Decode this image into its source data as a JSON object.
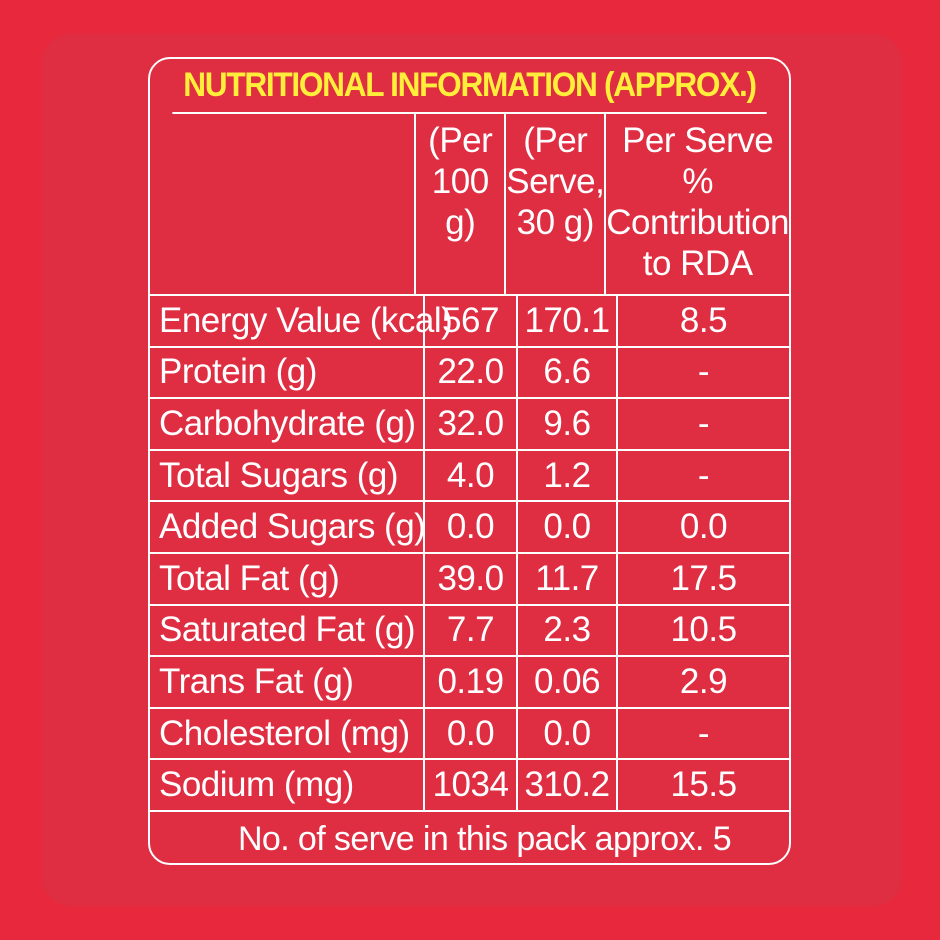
{
  "title": "NUTRITIONAL INFORMATION (APPROX.)",
  "colors": {
    "background": "#e8283c",
    "title": "#ffee3a",
    "text": "#ffffff",
    "border": "#ffffff"
  },
  "columns": {
    "per100": "(Per 100 g)",
    "perServe": "(Per Serve, 30 g)",
    "rda": "Per Serve % Contribution to RDA"
  },
  "rows": [
    {
      "nutrient": "Energy Value (kcal)",
      "per100": "567",
      "perServe": "170.1",
      "rda": "8.5"
    },
    {
      "nutrient": "Protein (g)",
      "per100": "22.0",
      "perServe": "6.6",
      "rda": "-"
    },
    {
      "nutrient": "Carbohydrate (g)",
      "per100": "32.0",
      "perServe": "9.6",
      "rda": "-"
    },
    {
      "nutrient": "Total Sugars (g)",
      "per100": "4.0",
      "perServe": "1.2",
      "rda": "-"
    },
    {
      "nutrient": "Added Sugars (g)",
      "per100": "0.0",
      "perServe": "0.0",
      "rda": "0.0"
    },
    {
      "nutrient": "Total Fat (g)",
      "per100": "39.0",
      "perServe": "11.7",
      "rda": "17.5"
    },
    {
      "nutrient": "Saturated Fat (g)",
      "per100": "7.7",
      "perServe": "2.3",
      "rda": "10.5"
    },
    {
      "nutrient": "Trans Fat (g)",
      "per100": "0.19",
      "perServe": "0.06",
      "rda": "2.9"
    },
    {
      "nutrient": "Cholesterol (mg)",
      "per100": "0.0",
      "perServe": "0.0",
      "rda": "-"
    },
    {
      "nutrient": "Sodium (mg)",
      "per100": "1034",
      "perServe": "310.2",
      "rda": "15.5"
    }
  ],
  "footer": "No. of serve in this pack approx. 5"
}
